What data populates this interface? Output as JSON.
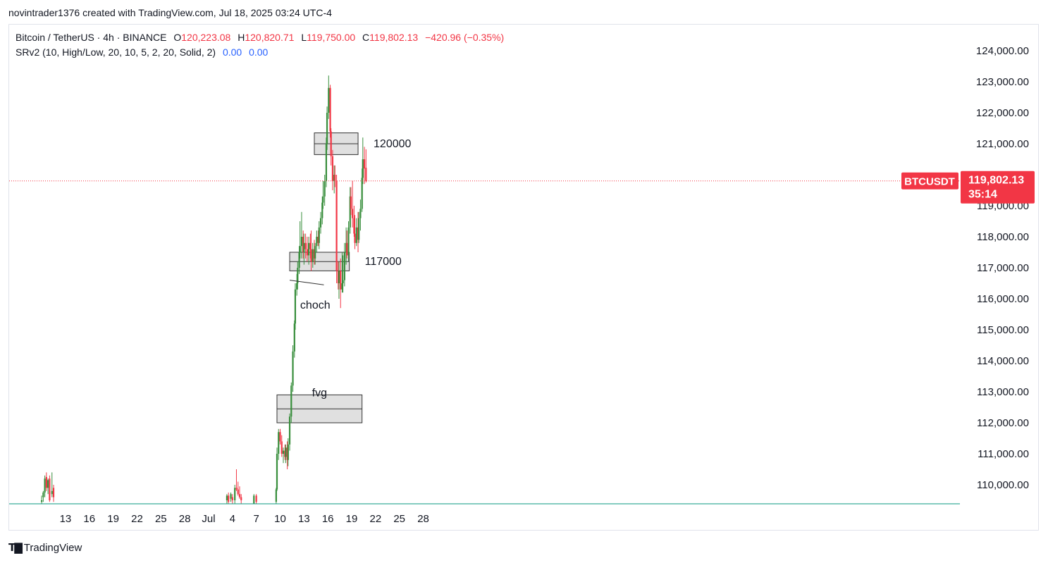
{
  "header": {
    "attribution": "novintrader1376 created with TradingView.com, Jul 18, 2025 03:24 UTC-4"
  },
  "legend": {
    "symbol": "Bitcoin / TetherUS · 4h · BINANCE",
    "o_label": "O",
    "o_value": "120,223.08",
    "h_label": "H",
    "h_value": "120,820.71",
    "l_label": "L",
    "l_value": "119,750.00",
    "c_label": "C",
    "c_value": "119,802.13",
    "change": "−420.96 (−0.35%)",
    "indicator": "SRv2 (10, High/Low, 20, 10, 5, 2, 20, Solid, 2)",
    "ind_v1": "0.00",
    "ind_v2": "0.00"
  },
  "price_tag": {
    "symbol": "BTCUSDT",
    "price": "119,802.13",
    "countdown": "35:14"
  },
  "colors": {
    "up": "#388e3c",
    "down": "#f23645",
    "zone_fill": "#d6d6d6",
    "baseline": "#089981"
  },
  "footer": {
    "brand": "TradingView"
  },
  "chart_data": {
    "type": "candlestick",
    "y_ticks": [
      "124,000.00",
      "123,000.00",
      "122,000.00",
      "121,000.00",
      "120,000.00",
      "119,000.00",
      "118,000.00",
      "117,000.00",
      "116,000.00",
      "115,000.00",
      "114,000.00",
      "113,000.00",
      "112,000.00",
      "111,000.00",
      "110,000.00"
    ],
    "y_tick_values": [
      124000,
      123000,
      122000,
      121000,
      120000,
      119000,
      118000,
      117000,
      116000,
      115000,
      114000,
      113000,
      112000,
      111000,
      110000
    ],
    "ylim": [
      109400,
      124600
    ],
    "x_ticks": [
      "13",
      "16",
      "19",
      "22",
      "25",
      "28",
      "Jul",
      "4",
      "7",
      "10",
      "13",
      "16",
      "19",
      "22",
      "25",
      "28"
    ],
    "x_tick_days": [
      13,
      16,
      19,
      22,
      25,
      28,
      31,
      34,
      37,
      40,
      43,
      46,
      49,
      52,
      55,
      58
    ],
    "x_axis_start": "Jun 10, 2025",
    "last_price": 119802.13,
    "zones": [
      {
        "label": "120000",
        "start_day": 44.3,
        "end_day": 49.8,
        "top": 121350,
        "mid": 121000,
        "bottom": 120650
      },
      {
        "label": "117000",
        "start_day": 41.2,
        "end_day": 48.7,
        "top": 117500,
        "mid": 117200,
        "bottom": 116900
      },
      {
        "label": "fvg",
        "start_day": 39.6,
        "end_day": 50.3,
        "top": 112900,
        "mid": 112450,
        "bottom": 112000
      }
    ],
    "annotations": [
      {
        "text": "choch",
        "line": [
          [
            41.2,
            116600
          ],
          [
            45.5,
            116450
          ]
        ]
      }
    ],
    "candles": [
      [
        10.0,
        109450,
        109650,
        109400,
        109500
      ],
      [
        10.2,
        109600,
        109800,
        109450,
        109750
      ],
      [
        10.4,
        109750,
        110300,
        109600,
        110200
      ],
      [
        10.6,
        110250,
        110400,
        109800,
        109900
      ],
      [
        10.8,
        109900,
        110200,
        109700,
        110150
      ],
      [
        11.0,
        110200,
        110300,
        109450,
        109500
      ],
      [
        11.3,
        109700,
        110400,
        109600,
        109800
      ],
      [
        11.5,
        109900,
        110000,
        109450,
        109600
      ],
      [
        33.3,
        109500,
        109700,
        109400,
        109650
      ],
      [
        33.5,
        109650,
        109750,
        109400,
        109450
      ],
      [
        33.8,
        109550,
        109750,
        109450,
        109700
      ],
      [
        34.0,
        109600,
        109700,
        109400,
        109500
      ],
      [
        34.3,
        109500,
        110000,
        109400,
        109900
      ],
      [
        34.5,
        109900,
        110500,
        109800,
        109850
      ],
      [
        34.7,
        109850,
        110100,
        109650,
        109700
      ],
      [
        34.9,
        109700,
        109950,
        109550,
        109600
      ],
      [
        35.1,
        109600,
        109700,
        109400,
        109500
      ],
      [
        36.7,
        109400,
        109700,
        109400,
        109650
      ],
      [
        37.0,
        109650,
        109700,
        109400,
        109450
      ],
      [
        39.5,
        109450,
        109900,
        109400,
        109850
      ],
      [
        39.6,
        109850,
        111200,
        109800,
        111000
      ],
      [
        39.8,
        111000,
        111800,
        110800,
        111700
      ],
      [
        40.0,
        111700,
        111800,
        111300,
        111400
      ],
      [
        40.2,
        111400,
        111600,
        110900,
        111000
      ],
      [
        40.4,
        111000,
        111200,
        110700,
        111100
      ],
      [
        40.6,
        111100,
        111300,
        110800,
        110900
      ],
      [
        40.7,
        110900,
        111300,
        110700,
        111200
      ],
      [
        40.9,
        111200,
        111400,
        110500,
        110800
      ],
      [
        41.0,
        110800,
        111500,
        110600,
        111300
      ],
      [
        41.2,
        111300,
        112300,
        111100,
        112200
      ],
      [
        41.4,
        112200,
        113300,
        112000,
        113200
      ],
      [
        41.6,
        113200,
        114500,
        113000,
        114300
      ],
      [
        41.8,
        114300,
        115300,
        114100,
        115200
      ],
      [
        41.9,
        115200,
        116500,
        115000,
        116300
      ],
      [
        42.1,
        116300,
        116800,
        116100,
        116500
      ],
      [
        42.2,
        116500,
        117200,
        116300,
        117000
      ],
      [
        42.4,
        117000,
        117700,
        116800,
        117500
      ],
      [
        42.5,
        117500,
        118500,
        117300,
        117700
      ],
      [
        42.7,
        117700,
        118800,
        117300,
        118000
      ],
      [
        42.9,
        118000,
        118200,
        117300,
        117500
      ],
      [
        43.0,
        117500,
        118100,
        117100,
        117800
      ],
      [
        43.2,
        117800,
        118100,
        117300,
        117600
      ],
      [
        43.4,
        117600,
        118000,
        117200,
        117400
      ],
      [
        43.6,
        117400,
        118000,
        117100,
        117800
      ],
      [
        43.8,
        117800,
        118100,
        117300,
        117600
      ],
      [
        43.9,
        117600,
        118200,
        116900,
        117200
      ],
      [
        44.1,
        117200,
        117800,
        117000,
        117600
      ],
      [
        44.3,
        117600,
        117900,
        117100,
        117300
      ],
      [
        44.4,
        117300,
        117800,
        117100,
        117700
      ],
      [
        44.6,
        117700,
        118200,
        117500,
        118000
      ],
      [
        44.8,
        118000,
        118200,
        117700,
        117800
      ],
      [
        44.9,
        117800,
        118500,
        117600,
        118300
      ],
      [
        45.1,
        118300,
        118800,
        118100,
        118600
      ],
      [
        45.3,
        118600,
        119300,
        118400,
        119100
      ],
      [
        45.4,
        119100,
        119800,
        118900,
        119300
      ],
      [
        45.6,
        119300,
        120000,
        119000,
        119800
      ],
      [
        45.8,
        119800,
        121200,
        119600,
        121000
      ],
      [
        45.9,
        121000,
        122200,
        120800,
        122000
      ],
      [
        46.1,
        122000,
        123200,
        121800,
        122800
      ],
      [
        46.3,
        122800,
        122900,
        121200,
        121400
      ],
      [
        46.4,
        121400,
        121500,
        120300,
        120600
      ],
      [
        46.6,
        120600,
        120800,
        119500,
        119800
      ],
      [
        46.8,
        119800,
        120300,
        119400,
        120000
      ],
      [
        46.9,
        120000,
        120300,
        119600,
        119800
      ],
      [
        47.1,
        119800,
        120000,
        116500,
        116900
      ],
      [
        47.3,
        116900,
        117200,
        116300,
        116500
      ],
      [
        47.4,
        116500,
        117200,
        116000,
        116900
      ],
      [
        47.6,
        116900,
        117300,
        115700,
        116300
      ],
      [
        47.8,
        116300,
        117500,
        116200,
        116500
      ],
      [
        47.9,
        116500,
        117400,
        116200,
        116600
      ],
      [
        48.1,
        116600,
        117800,
        116400,
        117500
      ],
      [
        48.3,
        117500,
        118300,
        117100,
        117800
      ],
      [
        48.4,
        117800,
        118200,
        117300,
        117400
      ],
      [
        48.6,
        117400,
        118500,
        117200,
        118300
      ],
      [
        48.8,
        118300,
        119600,
        118100,
        119300
      ],
      [
        48.9,
        119300,
        119600,
        118700,
        118900
      ],
      [
        49.1,
        118900,
        119800,
        118300,
        118600
      ],
      [
        49.3,
        118600,
        119000,
        118000,
        118100
      ],
      [
        49.4,
        118100,
        118700,
        117600,
        117800
      ],
      [
        49.6,
        117800,
        118600,
        117700,
        118300
      ],
      [
        49.8,
        118300,
        118800,
        117500,
        117900
      ],
      [
        49.9,
        117900,
        118800,
        117800,
        118600
      ],
      [
        50.1,
        118600,
        119200,
        118200,
        118900
      ],
      [
        50.3,
        118900,
        120200,
        118800,
        119900
      ],
      [
        50.4,
        119900,
        121200,
        119700,
        120500
      ],
      [
        50.6,
        120500,
        120900,
        119700,
        120200
      ],
      [
        50.8,
        120223,
        120821,
        119750,
        119802
      ]
    ]
  }
}
